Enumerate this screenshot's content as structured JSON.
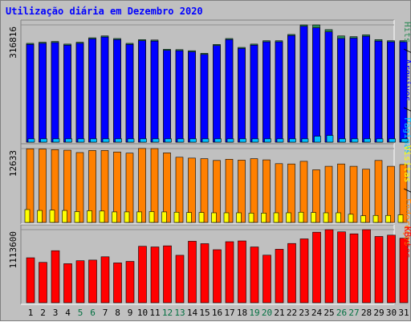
{
  "chart_data": {
    "type": "bar",
    "title": "Utilização diária em Dezembro 2020",
    "categories": [
      "1",
      "2",
      "3",
      "4",
      "5",
      "6",
      "7",
      "8",
      "9",
      "10",
      "11",
      "12",
      "13",
      "14",
      "15",
      "16",
      "17",
      "18",
      "19",
      "20",
      "21",
      "22",
      "23",
      "24",
      "25",
      "26",
      "27",
      "28",
      "29",
      "30",
      "31"
    ],
    "weekend_days": [
      "5",
      "6",
      "12",
      "13",
      "19",
      "20",
      "26",
      "27"
    ],
    "panels": [
      {
        "id": "hits",
        "ytick": "316816",
        "ymax": 316816,
        "series": [
          {
            "name": "Hits",
            "color": "#2e8b57",
            "values": [
              267000,
              270000,
              272000,
              265000,
              270000,
              282000,
              287000,
              280000,
              267000,
              277000,
              276000,
              251000,
              250000,
              247000,
              240000,
              264000,
              280000,
              256000,
              265000,
              274000,
              274000,
              291000,
              316816,
              316816,
              304000,
              287000,
              285000,
              290000,
              277000,
              274000,
              274000
            ]
          },
          {
            "name": "Arquivos",
            "color": "#0000ff",
            "values": [
              264000,
              267000,
              269000,
              262000,
              267000,
              279000,
              284000,
              277000,
              264000,
              274000,
              273000,
              248000,
              247000,
              244000,
              237000,
              261000,
              277000,
              253000,
              262000,
              271000,
              271000,
              288000,
              313000,
              309000,
              298000,
              280000,
              281000,
              286000,
              273000,
              271000,
              271000
            ]
          },
          {
            "name": "Páginas",
            "color": "#00bfff",
            "values": [
              9000,
              9000,
              9000,
              9000,
              9000,
              9000,
              9000,
              9000,
              9000,
              9000,
              9000,
              9000,
              9000,
              9000,
              9000,
              9000,
              9000,
              9000,
              9000,
              9000,
              9000,
              9000,
              9000,
              16000,
              18000,
              9000,
              9000,
              9000,
              9000,
              9000,
              9000
            ]
          }
        ]
      },
      {
        "id": "visits",
        "ytick": "12633",
        "ymax": 12633,
        "series": [
          {
            "name": "Visitas",
            "color": "#ff8000",
            "values": [
              12600,
              12550,
              12450,
              12350,
              11950,
              12300,
              12300,
              12050,
              11850,
              12650,
              12630,
              11900,
              11150,
              11000,
              10900,
              10600,
              10800,
              10650,
              10900,
              10700,
              10050,
              10000,
              10450,
              9000,
              9600,
              10000,
              9600,
              9100,
              10600,
              9600,
              9900
            ]
          },
          {
            "name": "Endereços",
            "color": "#ffff00",
            "values": [
              2200,
              2050,
              2100,
              2050,
              1850,
              2000,
              1950,
              1800,
              1800,
              1800,
              1850,
              1800,
              1750,
              1700,
              1700,
              1650,
              1650,
              1650,
              1600,
              1600,
              1650,
              1650,
              1750,
              1700,
              1650,
              1650,
              1400,
              1150,
              1200,
              1200,
              1300
            ]
          }
        ]
      },
      {
        "id": "kbytes",
        "ytick": "1113600",
        "ymax": 1113600,
        "series": [
          {
            "name": "KBytes",
            "color": "#ff0000",
            "values": [
              685000,
              615000,
              793000,
              595000,
              640000,
              650000,
              700000,
              607000,
              630000,
              860000,
              850000,
              867000,
              723000,
              937000,
              900000,
              808000,
              930000,
              942000,
              850000,
              725000,
              815000,
              903000,
              973000,
              1075000,
              1113600,
              1080000,
              1050000,
              1113600,
              1010000,
              1030000,
              983000
            ]
          }
        ]
      }
    ],
    "right_labels": [
      {
        "panel": "hits",
        "parts": [
          {
            "text": "Hits",
            "color": "#2e8b57"
          },
          {
            "text": " / ",
            "color": "#000000"
          },
          {
            "text": "Arquivos",
            "color": "#0000ff"
          },
          {
            "text": " / ",
            "color": "#000000"
          },
          {
            "text": "Páginas",
            "color": "#00bfff"
          }
        ]
      },
      {
        "panel": "visits",
        "parts": [
          {
            "text": "Visitas",
            "color": "#ffff00"
          },
          {
            "text": " / ",
            "color": "#000000"
          },
          {
            "text": "Endereços",
            "color": "#ff8000"
          }
        ]
      },
      {
        "panel": "kbytes",
        "parts": [
          {
            "text": "KBytes",
            "color": "#ff0000"
          }
        ]
      }
    ]
  }
}
